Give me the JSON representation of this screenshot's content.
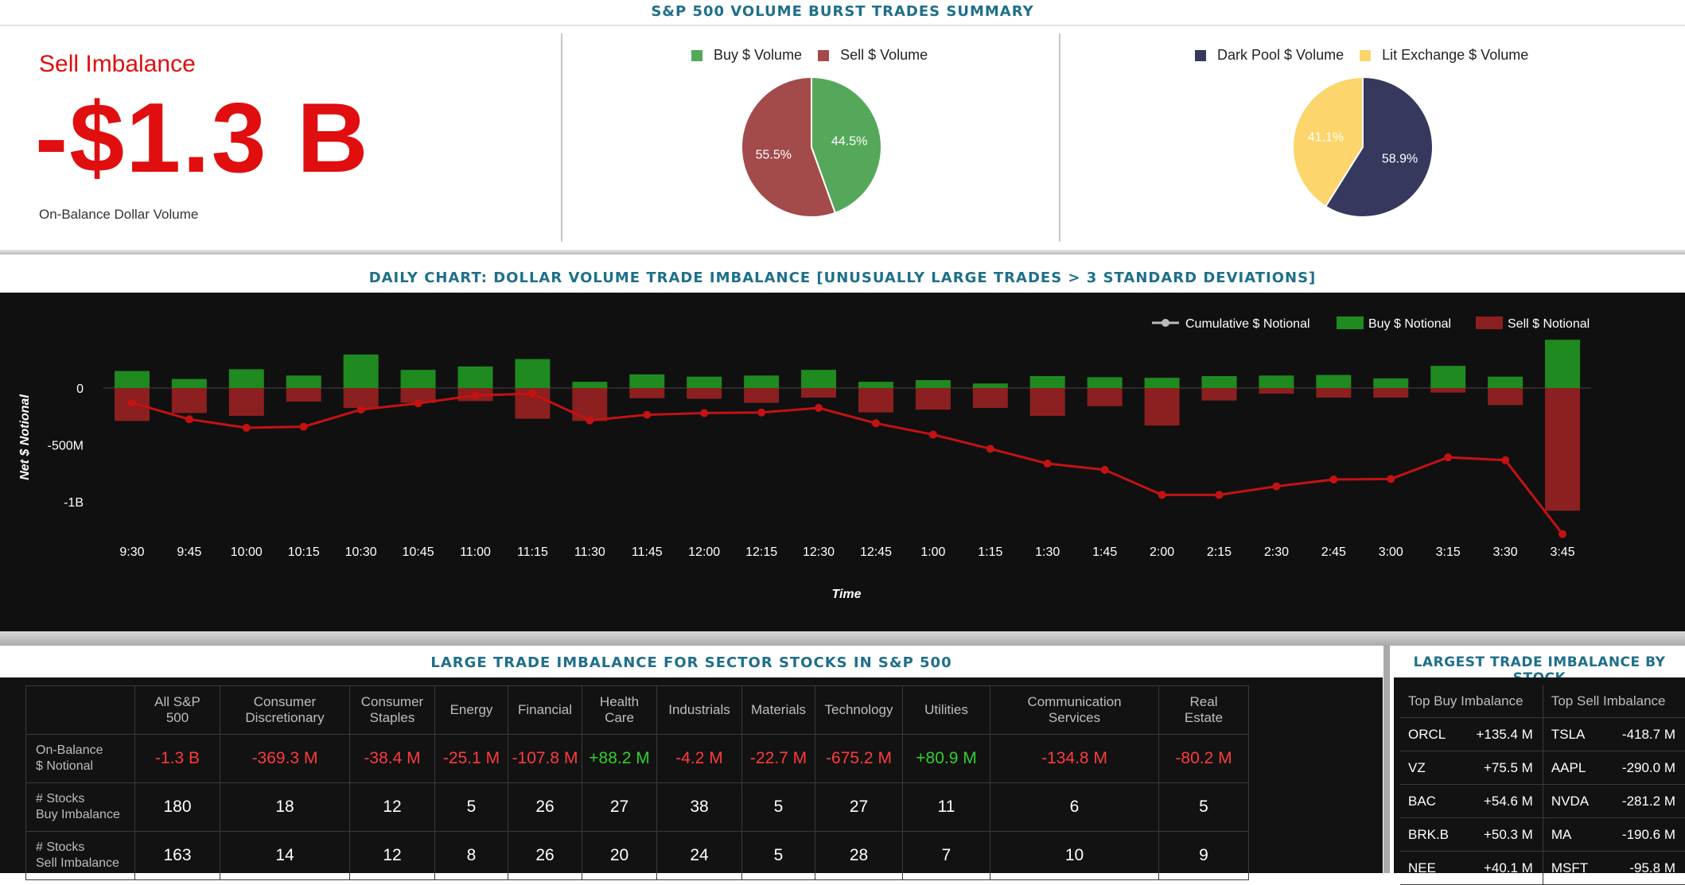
{
  "header": {
    "title": "S&P 500 VOLUME BURST TRADES SUMMARY"
  },
  "kpi": {
    "label": "Sell Imbalance",
    "value": "-$1.3 B",
    "sublabel": "On-Balance Dollar Volume"
  },
  "colors": {
    "buy_pie": "#55a85a",
    "sell_pie": "#a34a4a",
    "dark_pool": "#36385e",
    "lit": "#fcd66c",
    "buy_bar": "#1f8a1f",
    "sell_bar": "#8c1f1f",
    "cumulative": "#c41212",
    "negative_text": "#ff3b3b",
    "positive_text": "#31d02c",
    "title": "#1f6f8b"
  },
  "pie_buy_sell": {
    "legend": [
      {
        "label": "Buy $ Volume",
        "color": "#55a85a"
      },
      {
        "label": "Sell $ Volume",
        "color": "#a34a4a"
      }
    ],
    "chart_data": {
      "type": "pie",
      "slices": [
        {
          "name": "Buy $ Volume",
          "value": 44.5,
          "label": "44.5%"
        },
        {
          "name": "Sell $ Volume",
          "value": 55.5,
          "label": "55.5%"
        }
      ]
    }
  },
  "pie_venue": {
    "legend": [
      {
        "label": "Dark Pool $ Volume",
        "color": "#36385e"
      },
      {
        "label": "Lit Exchange $ Volume",
        "color": "#fcd66c"
      }
    ],
    "chart_data": {
      "type": "pie",
      "slices": [
        {
          "name": "Dark Pool $ Volume",
          "value": 58.9,
          "label": "58.9%"
        },
        {
          "name": "Lit Exchange $ Volume",
          "value": 41.1,
          "label": "41.1%"
        }
      ]
    }
  },
  "daily_chart": {
    "title": "DAILY CHART: DOLLAR VOLUME TRADE IMBALANCE [UNUSUALLY LARGE TRADES > 3 STANDARD DEVIATIONS]",
    "legend": [
      {
        "label": "Cumulative $ Notional"
      },
      {
        "label": "Buy $ Notional"
      },
      {
        "label": "Sell $ Notional"
      }
    ],
    "chart_data": {
      "type": "bar",
      "xlabel": "Time",
      "ylabel": "Net $ Notional",
      "yticks": [
        {
          "value": 0,
          "label": "0"
        },
        {
          "value": -500,
          "label": "-500M"
        },
        {
          "value": -1000,
          "label": "-1B"
        }
      ],
      "ylim": [
        -1300,
        450
      ],
      "categories": [
        "9:30",
        "9:45",
        "10:00",
        "10:15",
        "10:30",
        "10:45",
        "11:00",
        "11:15",
        "11:30",
        "11:45",
        "12:00",
        "12:15",
        "12:30",
        "12:45",
        "1:00",
        "1:15",
        "1:30",
        "1:45",
        "2:00",
        "2:15",
        "2:30",
        "2:45",
        "3:00",
        "3:15",
        "3:30",
        "3:45"
      ],
      "series": [
        {
          "name": "Buy $ Notional",
          "values": [
            150,
            80,
            165,
            110,
            295,
            160,
            190,
            255,
            55,
            120,
            100,
            110,
            160,
            55,
            70,
            40,
            105,
            95,
            90,
            105,
            110,
            115,
            85,
            195,
            100,
            425
          ]
        },
        {
          "name": "Sell $ Notional",
          "values": [
            -290,
            -220,
            -245,
            -120,
            -175,
            -130,
            -115,
            -270,
            -290,
            -90,
            -95,
            -130,
            -85,
            -215,
            -190,
            -175,
            -245,
            -160,
            -330,
            -110,
            -50,
            -85,
            -85,
            -40,
            -150,
            -1080
          ]
        },
        {
          "name": "Cumulative $ Notional",
          "values": [
            -130,
            -275,
            -350,
            -340,
            -190,
            -135,
            -65,
            -50,
            -285,
            -235,
            -220,
            -215,
            -175,
            -310,
            -410,
            -535,
            -665,
            -720,
            -940,
            -940,
            -865,
            -805,
            -800,
            -610,
            -635,
            -1285
          ]
        }
      ]
    }
  },
  "sector_panel": {
    "title": "LARGE TRADE IMBALANCE FOR SECTOR STOCKS IN S&P 500",
    "columns": [
      [
        "All S&P",
        "500"
      ],
      [
        "Consumer",
        "Discretionary"
      ],
      [
        "Consumer",
        "Staples"
      ],
      [
        "Energy",
        ""
      ],
      [
        "Financial",
        ""
      ],
      [
        "Health",
        "Care"
      ],
      [
        "Industrials",
        ""
      ],
      [
        "Materials",
        ""
      ],
      [
        "Technology",
        ""
      ],
      [
        "Utilities",
        ""
      ],
      [
        "Communication",
        "Services"
      ],
      [
        "Real",
        "Estate"
      ]
    ],
    "rows": [
      {
        "label": [
          "On-Balance",
          "$ Notional"
        ],
        "values": [
          "-1.3 B",
          "-369.3 M",
          "-38.4 M",
          "-25.1 M",
          "-107.8 M",
          "+88.2 M",
          "-4.2 M",
          "-22.7 M",
          "-675.2 M",
          "+80.9 M",
          "-134.8 M",
          "-80.2 M"
        ]
      },
      {
        "label": [
          "# Stocks",
          "Buy Imbalance"
        ],
        "values": [
          "180",
          "18",
          "12",
          "5",
          "26",
          "27",
          "38",
          "5",
          "27",
          "11",
          "6",
          "5"
        ]
      },
      {
        "label": [
          "# Stocks",
          "Sell Imbalance"
        ],
        "values": [
          "163",
          "14",
          "12",
          "8",
          "26",
          "20",
          "24",
          "5",
          "28",
          "7",
          "10",
          "9"
        ]
      }
    ]
  },
  "stock_panel": {
    "title": "LARGEST TRADE IMBALANCE BY STOCK",
    "headers": [
      "Top Buy Imbalance",
      "Top Sell Imbalance"
    ],
    "rows": [
      {
        "buy": "ORCL",
        "buy_val": "+135.4 M",
        "sell": "TSLA",
        "sell_val": "-418.7 M"
      },
      {
        "buy": "VZ",
        "buy_val": "+75.5 M",
        "sell": "AAPL",
        "sell_val": "-290.0 M"
      },
      {
        "buy": "BAC",
        "buy_val": "+54.6 M",
        "sell": "NVDA",
        "sell_val": "-281.2 M"
      },
      {
        "buy": "BRK.B",
        "buy_val": "+50.3 M",
        "sell": "MA",
        "sell_val": "-190.6 M"
      },
      {
        "buy": "NEE",
        "buy_val": "+40.1 M",
        "sell": "MSFT",
        "sell_val": "-95.8 M"
      }
    ]
  }
}
